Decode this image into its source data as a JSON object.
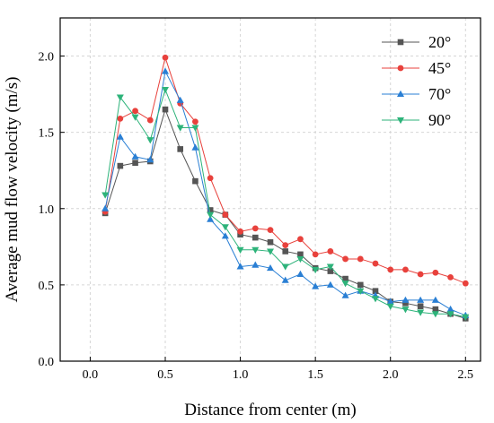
{
  "chart_data": {
    "type": "line",
    "title": "",
    "xlabel": "Distance from center (m)",
    "ylabel": "Average mud flow velocity (m/s)",
    "xlim": [
      -0.2,
      2.6
    ],
    "ylim": [
      0.0,
      2.25
    ],
    "xticks": [
      0.0,
      0.5,
      1.0,
      1.5,
      2.0,
      2.5
    ],
    "xtick_labels": [
      "0.0",
      "0.5",
      "1.0",
      "1.5",
      "2.0",
      "2.5"
    ],
    "yticks": [
      0.0,
      0.5,
      1.0,
      1.5,
      2.0
    ],
    "ytick_labels": [
      "0.0",
      "0.5",
      "1.0",
      "1.5",
      "2.0"
    ],
    "grid": true,
    "legend_position": "top-right",
    "x": [
      0.1,
      0.2,
      0.3,
      0.4,
      0.5,
      0.6,
      0.7,
      0.8,
      0.9,
      1.0,
      1.1,
      1.2,
      1.3,
      1.4,
      1.5,
      1.6,
      1.7,
      1.8,
      1.9,
      2.0,
      2.1,
      2.2,
      2.3,
      2.4,
      2.5
    ],
    "series": [
      {
        "name": "20°",
        "color": "#555555",
        "marker": "square",
        "values": [
          0.97,
          1.28,
          1.3,
          1.31,
          1.65,
          1.39,
          1.18,
          0.99,
          0.96,
          0.83,
          0.81,
          0.78,
          0.72,
          0.7,
          0.61,
          0.59,
          0.54,
          0.5,
          0.46,
          0.39,
          0.38,
          0.36,
          0.34,
          0.31,
          0.28
        ]
      },
      {
        "name": "45°",
        "color": "#e8413c",
        "marker": "circle",
        "values": [
          0.98,
          1.59,
          1.64,
          1.58,
          1.99,
          1.69,
          1.57,
          1.2,
          0.96,
          0.85,
          0.87,
          0.86,
          0.76,
          0.8,
          0.7,
          0.72,
          0.67,
          0.67,
          0.64,
          0.6,
          0.6,
          0.57,
          0.58,
          0.55,
          0.51
        ]
      },
      {
        "name": "70°",
        "color": "#2a7fd4",
        "marker": "triangle-up",
        "values": [
          1.0,
          1.47,
          1.34,
          1.32,
          1.9,
          1.71,
          1.4,
          0.93,
          0.82,
          0.62,
          0.63,
          0.61,
          0.53,
          0.57,
          0.49,
          0.5,
          0.43,
          0.46,
          0.43,
          0.39,
          0.4,
          0.4,
          0.4,
          0.34,
          0.3
        ]
      },
      {
        "name": "90°",
        "color": "#2db37a",
        "marker": "triangle-down",
        "values": [
          1.09,
          1.73,
          1.6,
          1.45,
          1.78,
          1.53,
          1.53,
          0.96,
          0.88,
          0.73,
          0.73,
          0.72,
          0.62,
          0.67,
          0.6,
          0.62,
          0.51,
          0.46,
          0.41,
          0.36,
          0.34,
          0.32,
          0.31,
          0.31,
          0.29
        ]
      }
    ]
  }
}
